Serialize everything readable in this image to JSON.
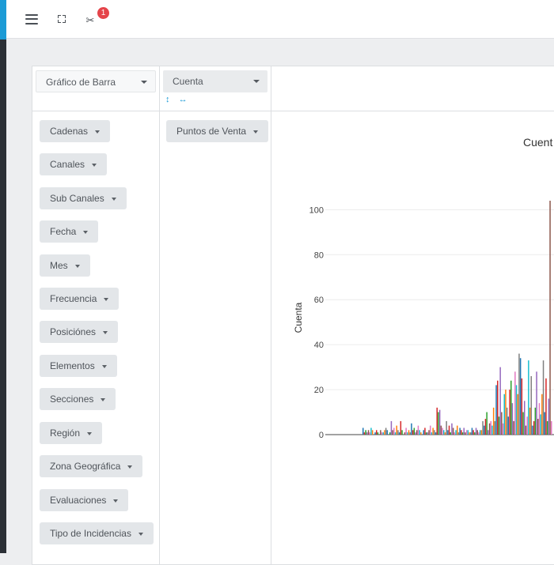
{
  "topbar": {
    "menu_icon": "hamburger-menu-icon",
    "fullscreen_icon": "fullscreen-icon",
    "tools_icon": "scissors-icon",
    "notification_count": "1"
  },
  "pivot": {
    "renderer": {
      "selected": "Gráfico de Barra"
    },
    "aggregator": {
      "selected": "Cuenta"
    },
    "sort_icons": {
      "rows": "↕",
      "cols": "↔"
    },
    "available_fields": [
      "Cadenas",
      "Canales",
      "Sub Canales",
      "Fecha",
      "Mes",
      "Frecuencia",
      "Posiciónes",
      "Elementos",
      "Secciones",
      "Región",
      "Zona Geográfica",
      "Evaluaciones",
      "Tipo de Incidencias"
    ],
    "row_fields": [
      "Puntos de Venta"
    ]
  },
  "colors": {
    "accent": "#1c9bd6",
    "badge": "#e5444a",
    "rail": "#2b3036"
  },
  "chart_data": {
    "type": "bar",
    "title": "Cuent",
    "ylabel": "Cuenta",
    "xlabel": "",
    "ylim": [
      0,
      104
    ],
    "yticks": [
      0,
      20,
      40,
      60,
      80,
      100
    ],
    "grid": true,
    "series_colors": [
      "#1f77b4",
      "#d62728",
      "#2ca02c",
      "#9467bd",
      "#8c564b",
      "#e377c2",
      "#17becf",
      "#ff7f0e",
      "#7f7f7f"
    ],
    "values": [
      3,
      1,
      2,
      1,
      2,
      1,
      3,
      2,
      0,
      1,
      2,
      1,
      0,
      2,
      1,
      1,
      2,
      3,
      2,
      0,
      1,
      6,
      2,
      3,
      1,
      4,
      2,
      1,
      6,
      2,
      0,
      1,
      3,
      1,
      2,
      1,
      5,
      2,
      3,
      1,
      2,
      4,
      2,
      1,
      0,
      2,
      3,
      1,
      1,
      2,
      4,
      1,
      3,
      2,
      1,
      12,
      10,
      11,
      4,
      3,
      2,
      1,
      6,
      2,
      4,
      1,
      5,
      3,
      1,
      2,
      4,
      1,
      3,
      2,
      1,
      3,
      1,
      2,
      2,
      1,
      1,
      3,
      2,
      1,
      3,
      2,
      1,
      2,
      2,
      6,
      4,
      7,
      10,
      2,
      5,
      6,
      4,
      12,
      6,
      22,
      24,
      8,
      30,
      10,
      5,
      18,
      20,
      12,
      8,
      20,
      24,
      14,
      6,
      28,
      22,
      18,
      36,
      34,
      25,
      10,
      15,
      4,
      8,
      33,
      12,
      26,
      4,
      6,
      12,
      28,
      7,
      14,
      9,
      18,
      33,
      10,
      25,
      6,
      16,
      104,
      6
    ]
  }
}
